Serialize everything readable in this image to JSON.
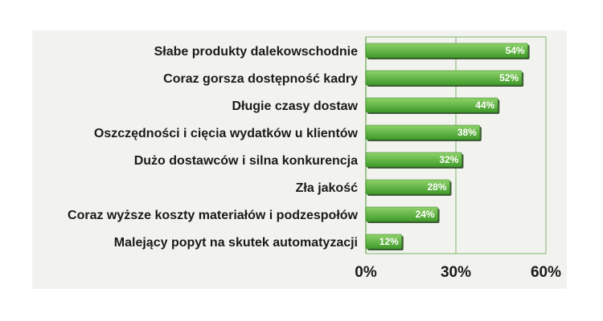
{
  "chart_data": {
    "type": "bar",
    "orientation": "horizontal",
    "categories": [
      "Słabe produkty dalekowschodnie",
      "Coraz gorsza dostępność kadry",
      "Długie czasy dostaw",
      "Oszczędności i cięcia wydatków u klientów",
      "Dużo dostawców i silna konkurencja",
      "Zła jakość",
      "Coraz wyższe koszty materiałów i podzespołów",
      "Malejący popyt na skutek automatyzacji"
    ],
    "values": [
      54,
      52,
      44,
      38,
      32,
      28,
      24,
      12
    ],
    "value_labels": [
      "54%",
      "52%",
      "44%",
      "38%",
      "32%",
      "28%",
      "24%",
      "12%"
    ],
    "xlim": [
      0,
      60
    ],
    "x_ticks": [
      0,
      30,
      60
    ],
    "x_tick_labels": [
      "0%",
      "30%",
      "60%"
    ],
    "grid": true,
    "legend": "none",
    "colors": {
      "bar_fill_light": "#8fd36a",
      "bar_fill_dark": "#3f9a2a",
      "bar_shadow": "#1f3f16",
      "grid": "#7fb36b",
      "panel_bg": "#f2f3ef",
      "text": "#1a1a1a",
      "value_text": "#ffffff"
    }
  }
}
